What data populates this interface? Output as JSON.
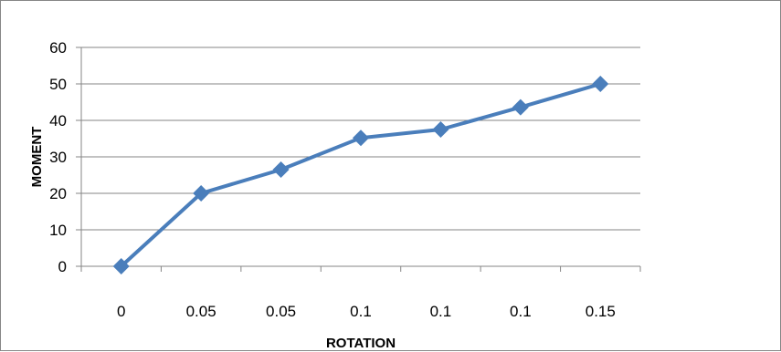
{
  "chart_data": {
    "type": "line",
    "categories": [
      "0",
      "0.05",
      "0.05",
      "0.1",
      "0.1",
      "0.1",
      "0.15"
    ],
    "series": [
      {
        "values": [
          0,
          20,
          26.5,
          35.2,
          37.5,
          43.6,
          50
        ]
      }
    ],
    "xlabel": "ROTATION",
    "ylabel": "MOMENT",
    "ylim": [
      0,
      60
    ],
    "yticks": [
      0,
      10,
      20,
      30,
      40,
      50,
      60
    ],
    "grid": "horizontal",
    "legend": "none",
    "colors": {
      "series": "#4a7ebb",
      "grid": "#868686",
      "axis": "#868686"
    }
  }
}
